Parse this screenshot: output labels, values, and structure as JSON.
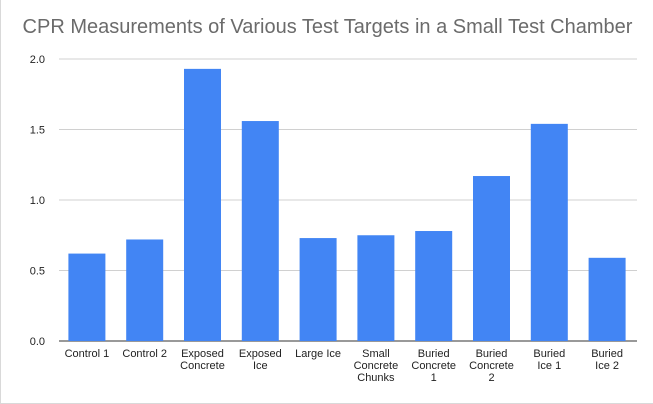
{
  "chart_data": {
    "type": "bar",
    "title": "CPR Measurements of Various Test Targets in a Small Test Chamber",
    "xlabel": "",
    "ylabel": "",
    "ylim": [
      0,
      2.0
    ],
    "yticks": [
      "0.0",
      "0.5",
      "1.0",
      "1.5",
      "2.0"
    ],
    "grid": true,
    "legend": "none",
    "bar_color": "#4285f4",
    "categories": [
      [
        "Control 1"
      ],
      [
        "Control 2"
      ],
      [
        "Exposed",
        "Concrete"
      ],
      [
        "Exposed",
        "Ice"
      ],
      [
        "Large Ice"
      ],
      [
        "Small",
        "Concrete",
        "Chunks"
      ],
      [
        "Buried",
        "Concrete",
        "1"
      ],
      [
        "Buried",
        "Concrete",
        "2"
      ],
      [
        "Buried",
        "Ice 1"
      ],
      [
        "Buried",
        "Ice 2"
      ]
    ],
    "values": [
      0.62,
      0.72,
      1.93,
      1.56,
      0.73,
      0.75,
      0.78,
      1.17,
      1.54,
      0.59
    ]
  }
}
